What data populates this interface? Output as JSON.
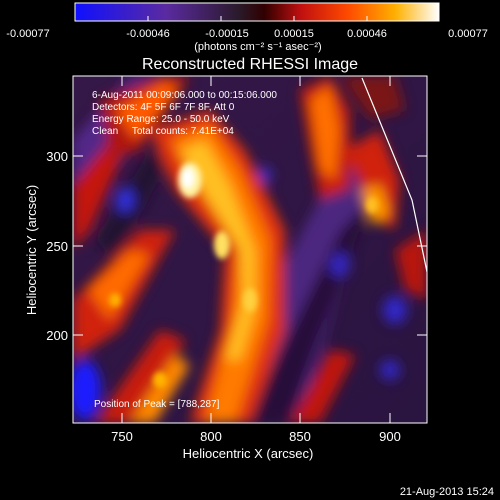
{
  "colorbar": {
    "tick_labels": [
      "-0.00077",
      "-0.00046",
      "-0.00015",
      "0.00015",
      "0.00046",
      "0.00077"
    ],
    "units_label": "(photons cm⁻² s⁻¹ asec⁻²)"
  },
  "title": "Reconstructed RHESSI Image",
  "info": {
    "line1": "6-Aug-2011 00:09:06.000 to 00:15:06.000",
    "line2": "Detectors: 4F 5F 6F 7F 8F, Att 0",
    "line3": "Energy Range: 25.0 - 50.0 keV",
    "line4": "Clean     Total counts: 7.41E+04"
  },
  "peak_label": "Position of Peak = [788,287]",
  "x_axis": {
    "label": "Heliocentric X (arcsec)",
    "tick_labels": [
      "750",
      "800",
      "850",
      "900"
    ]
  },
  "y_axis": {
    "label": "Heliocentric Y (arcsec)",
    "tick_labels": [
      "200",
      "250",
      "300"
    ]
  },
  "footer_timestamp": "21-Aug-2013 15:24",
  "colors": {
    "background": "#000000",
    "text": "#ffffff",
    "colormap": [
      "#1a1aff",
      "#5020a0",
      "#302040",
      "#b01818",
      "#ff3000",
      "#ff9a00",
      "#ffe850",
      "#ffffff"
    ]
  }
}
